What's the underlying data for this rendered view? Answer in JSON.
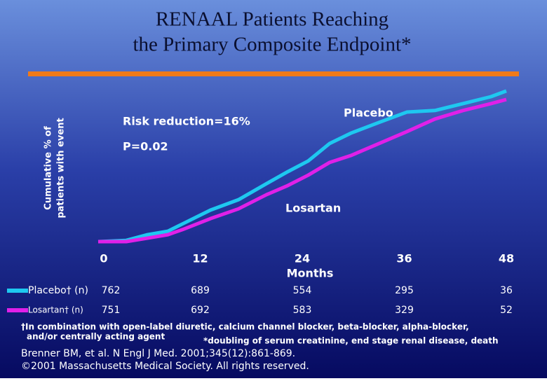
{
  "chart_data": {
    "type": "line",
    "title": [
      "RENAAL Patients Reaching",
      "the Primary Composite Endpoint*"
    ],
    "y_label": [
      "Cumulative % of",
      "patients with event"
    ],
    "x_label": "Months",
    "xlim": [
      0,
      48
    ],
    "xticks": [
      0,
      12,
      24,
      36,
      48
    ],
    "ylim": [
      0,
      50
    ],
    "grid": false,
    "annotations": [
      "Risk reduction=16%",
      "P=0.02"
    ],
    "series": [
      {
        "name": "Placebo",
        "color": "#1ec8f0",
        "x": [
          0,
          3.3,
          5.8,
          8.2,
          9.9,
          13.2,
          16.5,
          19.8,
          22.3,
          24.7,
          27.2,
          29.7,
          33.0,
          36.3,
          39.6,
          42.9,
          46.2,
          48
        ],
        "values": [
          0,
          0.4,
          2.2,
          3.3,
          5.6,
          10.0,
          13.3,
          18.4,
          22.2,
          25.6,
          31.1,
          34.4,
          37.8,
          41.1,
          41.6,
          43.8,
          46.0,
          47.8
        ]
      },
      {
        "name": "Losartan",
        "color": "#e020e8",
        "x": [
          0,
          3.3,
          5.8,
          8.2,
          9.9,
          13.2,
          16.5,
          19.8,
          22.3,
          24.7,
          27.2,
          29.7,
          33.0,
          36.3,
          39.6,
          42.9,
          46.2,
          48
        ],
        "values": [
          0,
          0,
          1.1,
          2.2,
          3.8,
          7.3,
          10.4,
          14.9,
          17.8,
          21.1,
          25.1,
          27.3,
          31.1,
          34.9,
          38.9,
          41.6,
          43.8,
          45.1
        ]
      }
    ],
    "at_risk": [
      {
        "label": "Placebo† (n)",
        "values": [
          762,
          689,
          554,
          295,
          36
        ]
      },
      {
        "label": "Losartan† (n)",
        "values": [
          751,
          692,
          583,
          329,
          52
        ]
      }
    ],
    "footnotes": [
      "†In combination with open-label diuretic, calcium channel blocker, beta-blocker, alpha-blocker,",
      "and/or centrally acting agent",
      "*doubling of serum creatinine, end stage renal disease, death"
    ],
    "citation": [
      "Brenner BM, et al. N Engl J Med. 2001;345(12):861-869.",
      "©2001 Massachusetts Medical Society. All rights reserved."
    ]
  }
}
